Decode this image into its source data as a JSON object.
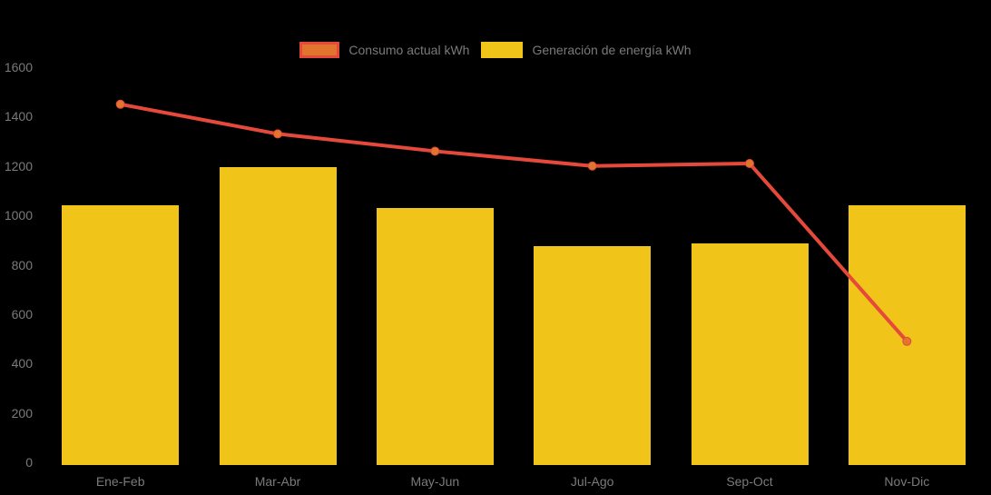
{
  "chart_data": {
    "type": "bar",
    "subtype": "combo-bar-line",
    "title": "",
    "xlabel": "",
    "ylabel": "",
    "categories": [
      "Ene-Feb",
      "Mar-Abr",
      "May-Jun",
      "Jul-Ago",
      "Sep-Oct",
      "Nov-Dic"
    ],
    "series": [
      {
        "name": "Consumo actual kWh",
        "type": "line",
        "color": "#E4493B",
        "marker_color": "#E2752E",
        "values": [
          1450,
          1330,
          1260,
          1200,
          1210,
          490
        ]
      },
      {
        "name": "Generación de energía kWh",
        "type": "bar",
        "color": "#F0C419",
        "values": [
          1040,
          1195,
          1030,
          875,
          885,
          1040
        ]
      }
    ],
    "ylim": [
      0,
      1600
    ],
    "yticks": [
      0,
      200,
      400,
      600,
      800,
      1000,
      1200,
      1400,
      1600
    ],
    "grid": false,
    "legend_position": "top",
    "background": "#000000",
    "axis_text_color": "#7A7A7A"
  }
}
